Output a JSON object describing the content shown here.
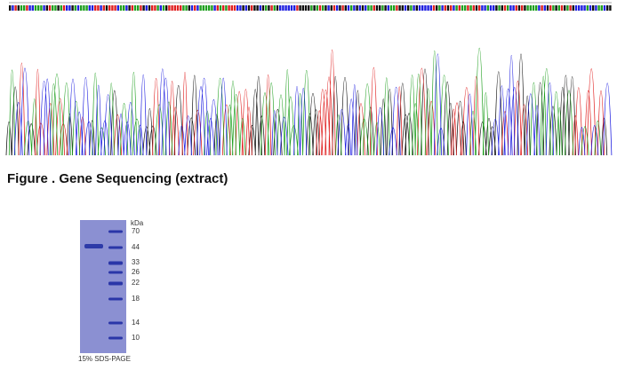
{
  "figure": {
    "caption": "Figure . Gene Sequencing (extract)"
  },
  "gel": {
    "unit": "kDa",
    "markers": [
      "70",
      "44",
      "33",
      "26",
      "22",
      "18",
      "14",
      "10"
    ],
    "label": "15% SDS-PAGE"
  }
}
